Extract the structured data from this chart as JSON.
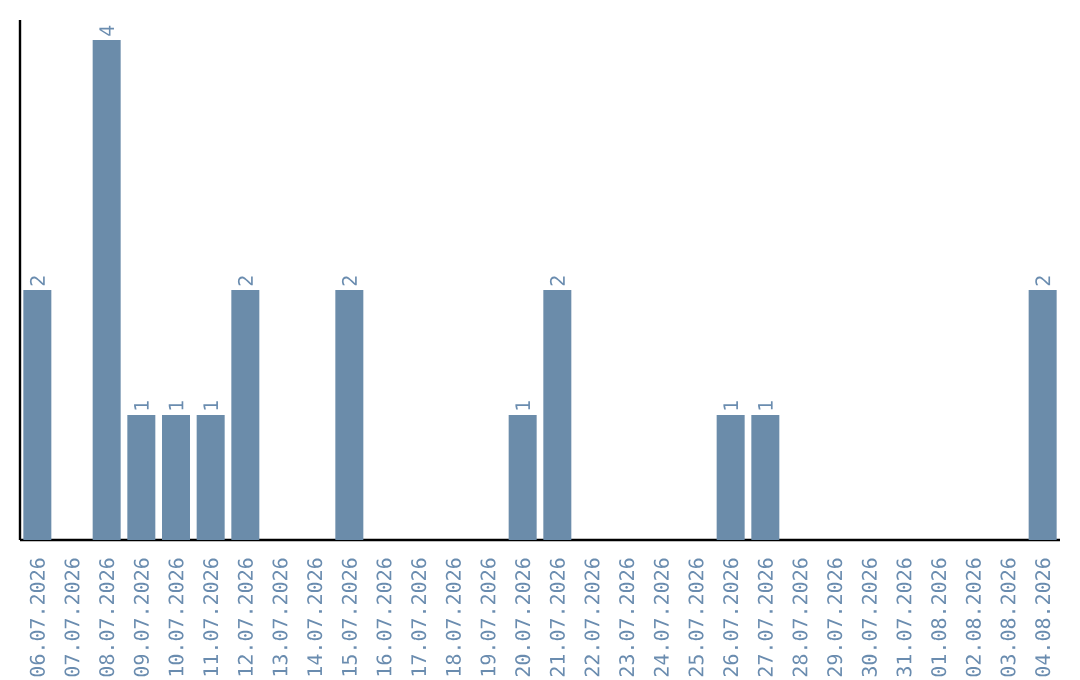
{
  "chart_data": {
    "type": "bar",
    "categories": [
      "06.07.2026",
      "07.07.2026",
      "08.07.2026",
      "09.07.2026",
      "10.07.2026",
      "11.07.2026",
      "12.07.2026",
      "13.07.2026",
      "14.07.2026",
      "15.07.2026",
      "16.07.2026",
      "17.07.2026",
      "18.07.2026",
      "19.07.2026",
      "20.07.2026",
      "21.07.2026",
      "22.07.2026",
      "23.07.2026",
      "24.07.2026",
      "25.07.2026",
      "26.07.2026",
      "27.07.2026",
      "28.07.2026",
      "29.07.2026",
      "30.07.2026",
      "31.07.2026",
      "01.08.2026",
      "02.08.2026",
      "03.08.2026",
      "04.08.2026"
    ],
    "values": [
      2,
      0,
      4,
      1,
      1,
      1,
      2,
      0,
      0,
      2,
      0,
      0,
      0,
      0,
      1,
      2,
      0,
      0,
      0,
      0,
      1,
      1,
      0,
      0,
      0,
      0,
      0,
      0,
      0,
      2
    ],
    "value_labels": [
      "2",
      null,
      "4",
      "1",
      "1",
      "1",
      "2",
      null,
      null,
      "2",
      null,
      null,
      null,
      null,
      "1",
      "2",
      null,
      null,
      null,
      null,
      "1",
      "1",
      null,
      null,
      null,
      null,
      null,
      null,
      null,
      "2"
    ],
    "color": "#6b8caa",
    "ylim": [
      0,
      4.16
    ],
    "tick_labels": "x"
  }
}
